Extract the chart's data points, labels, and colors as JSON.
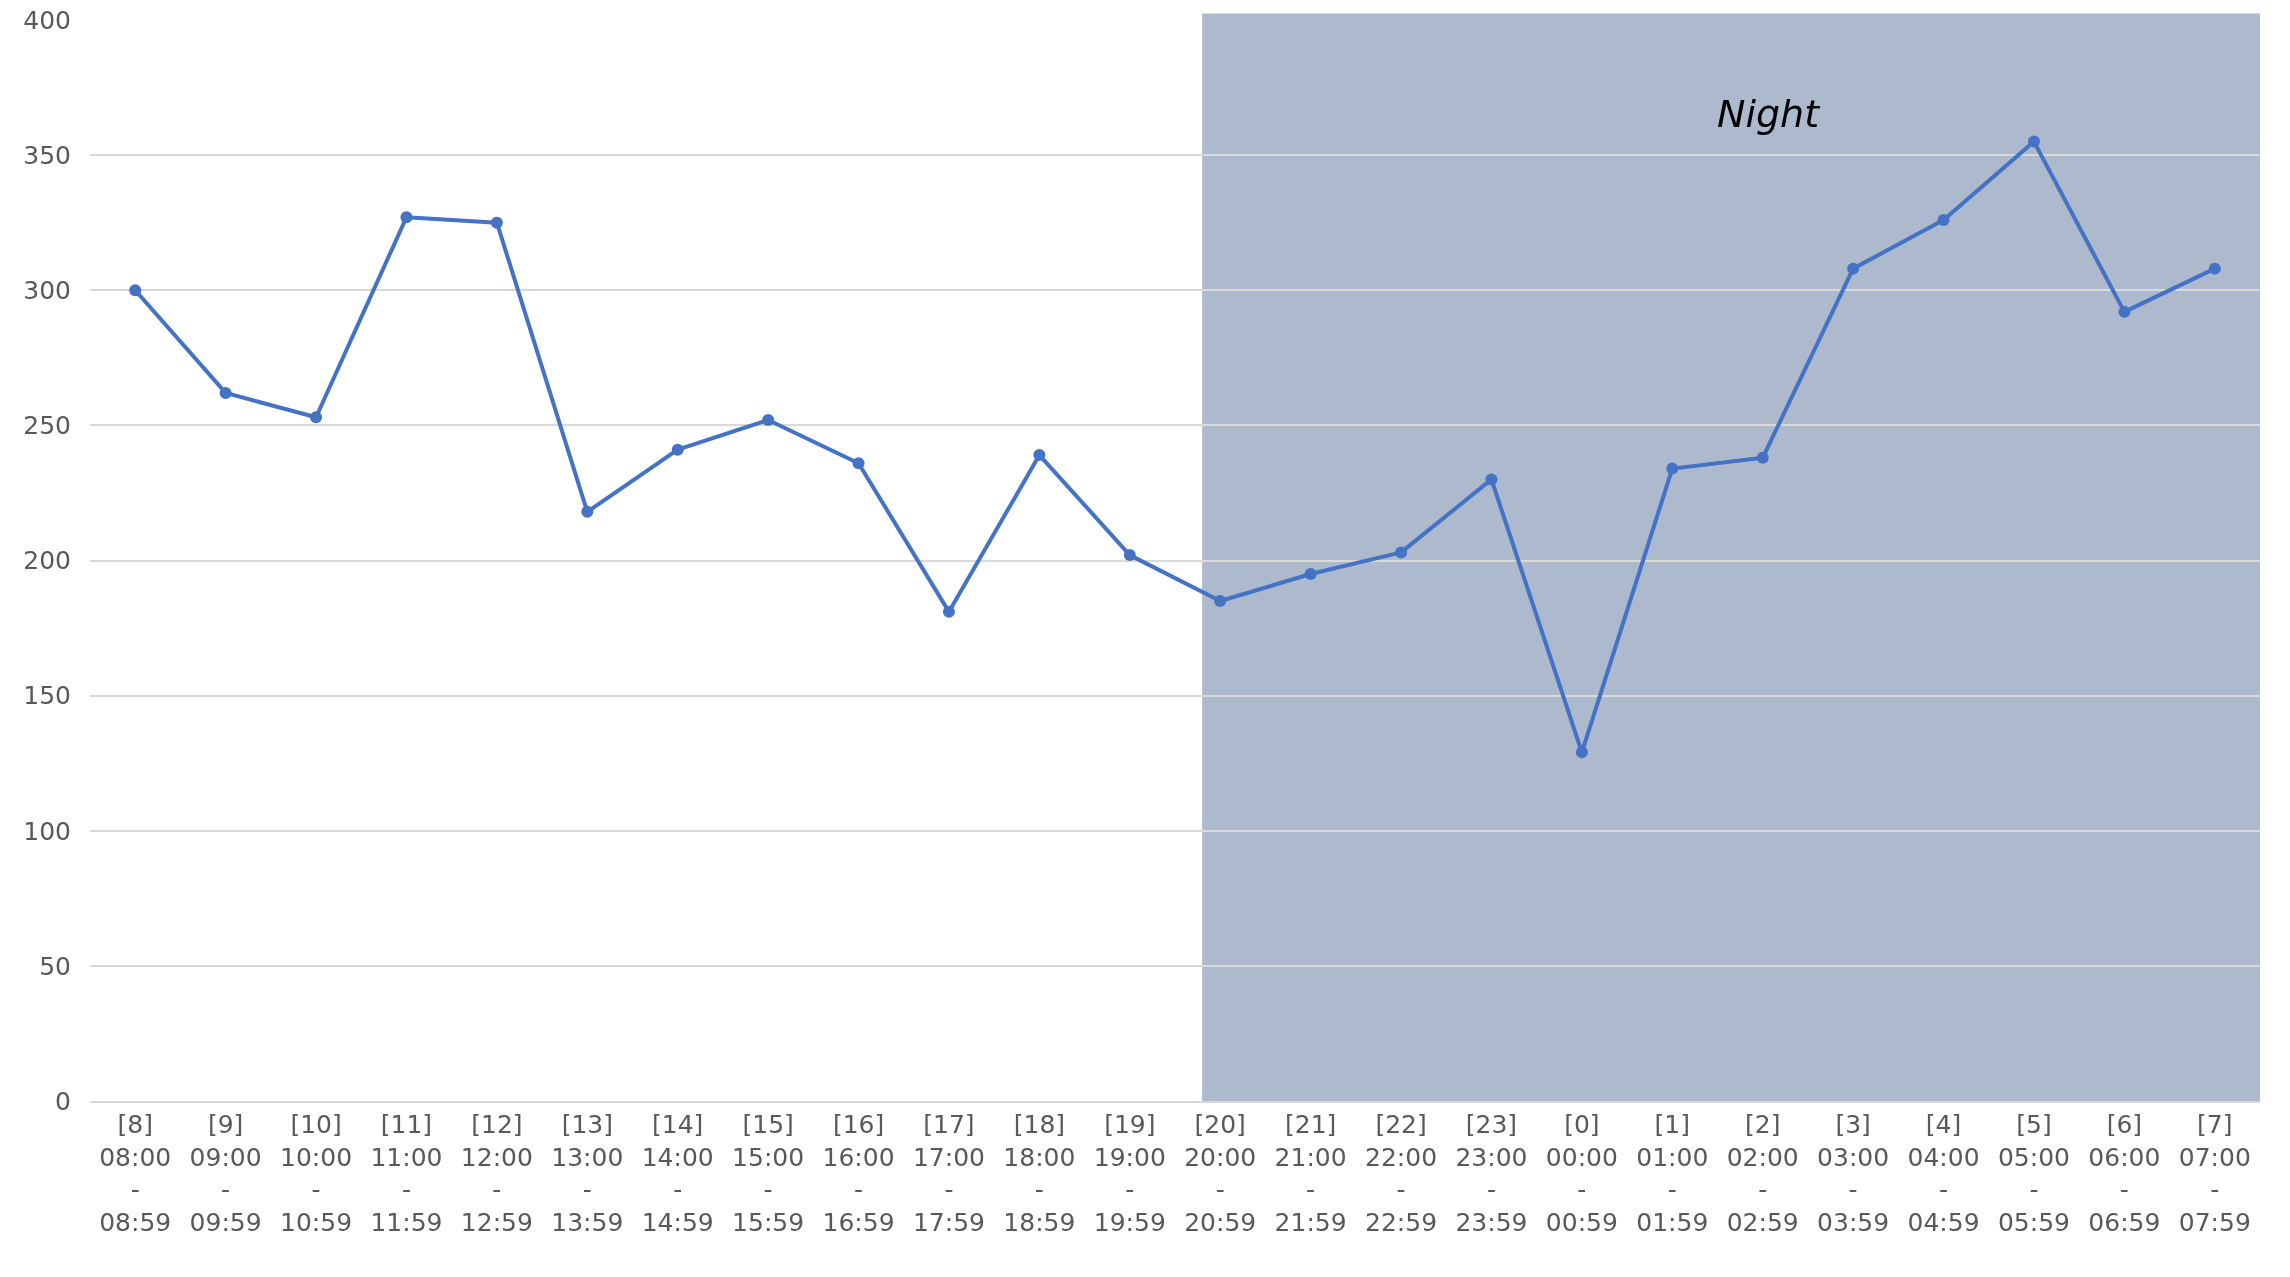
{
  "chart_data": {
    "type": "line",
    "categories": [
      "[8]\n08:00\n-\n08:59",
      "[9]\n09:00\n-\n09:59",
      "[10]\n10:00\n-\n10:59",
      "[11]\n11:00\n-\n11:59",
      "[12]\n12:00\n-\n12:59",
      "[13]\n13:00\n-\n13:59",
      "[14]\n14:00\n-\n14:59",
      "[15]\n15:00\n-\n15:59",
      "[16]\n16:00\n-\n16:59",
      "[17]\n17:00\n-\n17:59",
      "[18]\n18:00\n-\n18:59",
      "[19]\n19:00\n-\n19:59",
      "[20]\n20:00\n-\n20:59",
      "[21]\n21:00\n-\n21:59",
      "[22]\n22:00\n-\n22:59",
      "[23]\n23:00\n-\n23:59",
      "[0]\n00:00\n-\n00:59",
      "[1]\n01:00\n-\n01:59",
      "[2]\n02:00\n-\n02:59",
      "[3]\n03:00\n-\n03:59",
      "[4]\n04:00\n-\n04:59",
      "[5]\n05:00\n-\n05:59",
      "[6]\n06:00\n-\n06:59",
      "[7]\n07:00\n-\n07:59"
    ],
    "series": [
      {
        "color": "#4472c4",
        "values": [
          300,
          262,
          253,
          327,
          325,
          218,
          241,
          252,
          236,
          181,
          239,
          202,
          185,
          195,
          203,
          230,
          129,
          234,
          238,
          308,
          326,
          355,
          292,
          308
        ]
      }
    ],
    "ylim": [
      0,
      400
    ],
    "yticks": [
      0,
      50,
      100,
      150,
      200,
      250,
      300,
      350,
      400
    ],
    "grid": "y",
    "legend": false,
    "marker": "circle",
    "line_style": "solid",
    "bands": [
      {
        "axis": "x",
        "from": "[20]\n20:00\n-\n20:59",
        "to": "[7]\n07:00\n-\n07:59",
        "label": "Night",
        "color": "#adb9cc"
      }
    ]
  }
}
